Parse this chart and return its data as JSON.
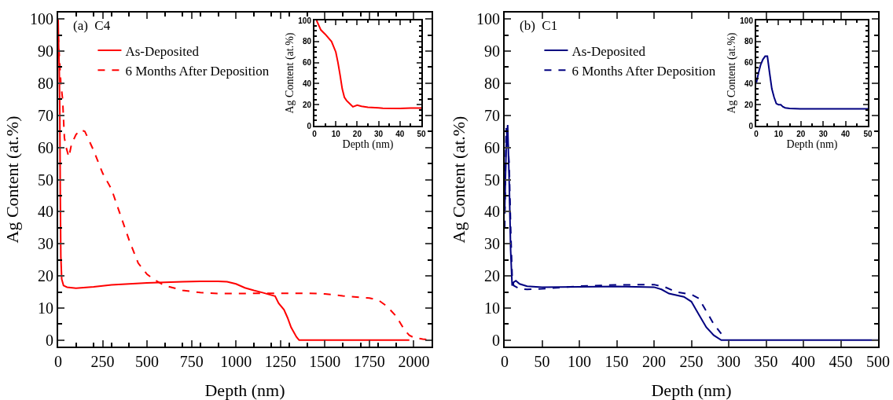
{
  "chart_data": [
    {
      "type": "line",
      "annotations": [
        "(a)  C4"
      ],
      "xlabel": "Depth (nm)",
      "ylabel": "Ag Content (at.%)",
      "xlim": [
        0,
        2100
      ],
      "ylim": [
        -2,
        102
      ],
      "xticks": [
        0,
        250,
        500,
        750,
        1000,
        1250,
        1500,
        1750,
        2000
      ],
      "yticks": [
        0,
        10,
        20,
        30,
        40,
        50,
        60,
        70,
        80,
        90,
        100
      ],
      "legend": "top left",
      "series": [
        {
          "name": "As-Deposited",
          "color": "#ff0000",
          "line_style": "solid",
          "x": [
            0,
            3,
            6,
            9,
            12,
            15,
            20,
            30,
            50,
            100,
            200,
            300,
            400,
            500,
            600,
            700,
            800,
            900,
            950,
            1000,
            1050,
            1100,
            1150,
            1200,
            1220,
            1240,
            1270,
            1290,
            1310,
            1340,
            1355,
            1500,
            1975
          ],
          "values": [
            100,
            91,
            85,
            72,
            45,
            26,
            19,
            17,
            16.5,
            16.2,
            16.6,
            17.2,
            17.5,
            17.8,
            18,
            18.2,
            18.3,
            18.3,
            18.2,
            17.5,
            16.3,
            15.5,
            14.8,
            14,
            13.7,
            11.5,
            9.5,
            7,
            4,
            1,
            0,
            0,
            0
          ]
        },
        {
          "name": "6 Months After Deposition",
          "color": "#ff0000",
          "line_style": "dashed",
          "x": [
            0,
            5,
            15,
            25,
            35,
            45,
            60,
            75,
            100,
            125,
            150,
            200,
            250,
            300,
            350,
            400,
            450,
            500,
            550,
            600,
            700,
            800,
            900,
            1000,
            1200,
            1400,
            1500,
            1600,
            1750,
            1800,
            1850,
            1900,
            1950,
            1975,
            2000,
            2050,
            2100
          ],
          "values": [
            95,
            90,
            80,
            75,
            63,
            60,
            57,
            61,
            64,
            65.5,
            65,
            59,
            52,
            47,
            39,
            31,
            24,
            20.5,
            18.5,
            17,
            15.5,
            14.8,
            14.5,
            14.5,
            14.6,
            14.6,
            14.4,
            13.8,
            13.1,
            12.5,
            10.5,
            7.5,
            3,
            1.5,
            0.8,
            0.3,
            0
          ]
        }
      ]
    },
    {
      "type": "line",
      "xlabel": "Depth (nm)",
      "ylabel": "Ag Content (at.%)",
      "xlim": [
        0,
        50
      ],
      "ylim": [
        0,
        100
      ],
      "xticks": [
        0,
        10,
        20,
        30,
        40,
        50
      ],
      "yticks": [
        0,
        20,
        40,
        60,
        80,
        100
      ],
      "series": [
        {
          "color": "#ff0000",
          "line_style": "solid",
          "x": [
            1,
            3,
            5,
            8,
            10,
            11,
            12,
            13,
            14,
            15,
            17,
            18,
            20,
            22,
            25,
            30,
            32,
            40,
            45,
            50
          ],
          "values": [
            100,
            91,
            87,
            80,
            70,
            60,
            48,
            35,
            27,
            24,
            20,
            18,
            19.5,
            18.5,
            17.5,
            17,
            16.6,
            16.5,
            16.8,
            16.8
          ]
        }
      ]
    },
    {
      "type": "line",
      "annotations": [
        "(b)  C1"
      ],
      "xlabel": "Depth (nm)",
      "ylabel": "Ag Content (at.%)",
      "xlim": [
        0,
        500
      ],
      "ylim": [
        -2,
        102
      ],
      "xticks": [
        0,
        50,
        100,
        150,
        200,
        250,
        300,
        350,
        400,
        450,
        500
      ],
      "yticks": [
        0,
        10,
        20,
        30,
        40,
        50,
        60,
        70,
        80,
        90,
        100
      ],
      "legend": "top left",
      "series": [
        {
          "name": "As-Deposited",
          "color": "#000080",
          "line_style": "solid",
          "x": [
            0,
            2,
            4,
            6,
            8,
            10,
            12,
            15,
            20,
            30,
            50,
            100,
            150,
            200,
            210,
            220,
            240,
            250,
            260,
            270,
            280,
            290,
            500
          ],
          "values": [
            40,
            60,
            67,
            50,
            28,
            17,
            18,
            18.5,
            17.5,
            16.8,
            16.5,
            16.6,
            16.7,
            16.5,
            15.8,
            14.5,
            13.5,
            12,
            8,
            4,
            1.5,
            0,
            0
          ]
        },
        {
          "name": "6 Months After Deposition",
          "color": "#000080",
          "line_style": "dashed",
          "x": [
            0,
            2,
            4,
            6,
            8,
            10,
            12,
            20,
            30,
            50,
            100,
            150,
            200,
            215,
            230,
            250,
            260,
            270,
            280,
            290
          ],
          "values": [
            35,
            66,
            62,
            55,
            35,
            20,
            17,
            16,
            15.8,
            16,
            16.8,
            17.2,
            17.3,
            16.5,
            15,
            14.2,
            13,
            9,
            5,
            2
          ]
        }
      ]
    },
    {
      "type": "line",
      "xlabel": "Depth (nm)",
      "ylabel": "Ag Content (at.%)",
      "xlim": [
        0,
        50
      ],
      "ylim": [
        0,
        100
      ],
      "xticks": [
        0,
        10,
        20,
        30,
        40,
        50
      ],
      "yticks": [
        0,
        20,
        40,
        60,
        80,
        100
      ],
      "series": [
        {
          "color": "#000080",
          "line_style": "solid",
          "x": [
            0,
            1,
            2,
            3,
            4,
            5,
            6,
            7,
            8,
            9,
            10,
            11,
            12,
            13,
            15,
            20,
            30,
            40,
            50
          ],
          "values": [
            40,
            50,
            58,
            63,
            66,
            66,
            50,
            35,
            27,
            21,
            20,
            20,
            18,
            17,
            16.5,
            16,
            16,
            16,
            16
          ]
        }
      ]
    }
  ]
}
